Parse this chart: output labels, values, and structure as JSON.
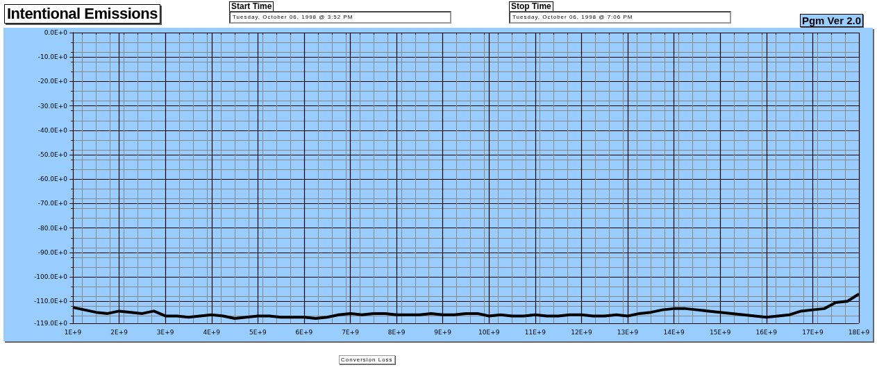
{
  "chart_data": {
    "type": "line",
    "title": "Intentional Emissions",
    "xlabel": "Conversion Loss",
    "annotations": [
      "Start Time",
      "Tuesday, October 06, 1998 @ 3:52 PM",
      "Stop Time",
      "Tuesday, October 06, 1998 @ 7:06 PM",
      "Pgm Ver 2.0"
    ],
    "x": [
      1000000000,
      1250000000,
      1500000000,
      1750000000,
      2000000000,
      2250000000,
      2500000000,
      2750000000,
      3000000000,
      3250000000,
      3500000000,
      3750000000,
      4000000000,
      4250000000,
      4500000000,
      4750000000,
      5000000000,
      5250000000,
      5500000000,
      5750000000,
      6000000000,
      6250000000,
      6500000000,
      6750000000,
      7000000000,
      7250000000,
      7500000000,
      7750000000,
      8000000000,
      8250000000,
      8500000000,
      8750000000,
      9000000000,
      9250000000,
      9500000000,
      9750000000,
      10000000000,
      10250000000,
      10500000000,
      10750000000,
      11000000000,
      11250000000,
      11500000000,
      11750000000,
      12000000000,
      12250000000,
      12500000000,
      12750000000,
      13000000000,
      13250000000,
      13500000000,
      13750000000,
      14000000000,
      14250000000,
      14500000000,
      14750000000,
      15000000000,
      15250000000,
      15500000000,
      15750000000,
      16000000000,
      16250000000,
      16500000000,
      16750000000,
      17000000000,
      17250000000,
      17500000000,
      17750000000,
      18000000000
    ],
    "series": [
      {
        "color": "#000000",
        "values": [
          -112.5,
          -113.5,
          -114.5,
          -115,
          -114,
          -114.5,
          -115,
          -114,
          -116,
          -116,
          -116.5,
          -116,
          -115.5,
          -116,
          -117,
          -116.5,
          -116,
          -116,
          -116.5,
          -116.5,
          -116.5,
          -117,
          -116.5,
          -115.5,
          -115,
          -115.5,
          -115,
          -115,
          -115.5,
          -115.5,
          -115.5,
          -115,
          -115.5,
          -115.5,
          -115,
          -115,
          -116,
          -115.5,
          -116,
          -116,
          -115.5,
          -116,
          -116,
          -115.5,
          -115.5,
          -116,
          -116,
          -115.5,
          -116,
          -115,
          -114.5,
          -113.5,
          -113,
          -113,
          -113.5,
          -114,
          -114.5,
          -115,
          -115.5,
          -116,
          -116.5,
          -116,
          -115.5,
          -114,
          -113.5,
          -113,
          -110.5,
          -110,
          -107
        ]
      }
    ],
    "xlim": [
      1000000000,
      18000000000
    ],
    "xticks": [
      {
        "value": 1000000000,
        "label": "1E+9"
      },
      {
        "value": 2000000000,
        "label": "2E+9"
      },
      {
        "value": 3000000000,
        "label": "3E+9"
      },
      {
        "value": 4000000000,
        "label": "4E+9"
      },
      {
        "value": 5000000000,
        "label": "5E+9"
      },
      {
        "value": 6000000000,
        "label": "6E+9"
      },
      {
        "value": 7000000000,
        "label": "7E+9"
      },
      {
        "value": 8000000000,
        "label": "8E+9"
      },
      {
        "value": 9000000000,
        "label": "9E+9"
      },
      {
        "value": 10000000000,
        "label": "10E+9"
      },
      {
        "value": 11000000000,
        "label": "11E+9"
      },
      {
        "value": 12000000000,
        "label": "12E+9"
      },
      {
        "value": 13000000000,
        "label": "13E+9"
      },
      {
        "value": 14000000000,
        "label": "14E+9"
      },
      {
        "value": 15000000000,
        "label": "15E+9"
      },
      {
        "value": 16000000000,
        "label": "16E+9"
      },
      {
        "value": 17000000000,
        "label": "17E+9"
      },
      {
        "value": 18000000000,
        "label": "18E+9"
      }
    ],
    "ylim": [
      -119,
      0
    ],
    "yticks": [
      {
        "value": 0,
        "label": "0.0E+0"
      },
      {
        "value": -10,
        "label": "-10.0E+0"
      },
      {
        "value": -20,
        "label": "-20.0E+0"
      },
      {
        "value": -30,
        "label": "-30.0E+0"
      },
      {
        "value": -40,
        "label": "-40.0E+0"
      },
      {
        "value": -50,
        "label": "-50.0E+0"
      },
      {
        "value": -60,
        "label": "-60.0E+0"
      },
      {
        "value": -70,
        "label": "-70.0E+0"
      },
      {
        "value": -80,
        "label": "-80.0E+0"
      },
      {
        "value": -90,
        "label": "-90.0E+0"
      },
      {
        "value": -100,
        "label": "-100.0E+0"
      },
      {
        "value": -110,
        "label": "-110.0E+0"
      },
      {
        "value": -119,
        "label": "-119.0E+0"
      }
    ],
    "grid": true,
    "marker": "none",
    "line_style": "solid"
  }
}
